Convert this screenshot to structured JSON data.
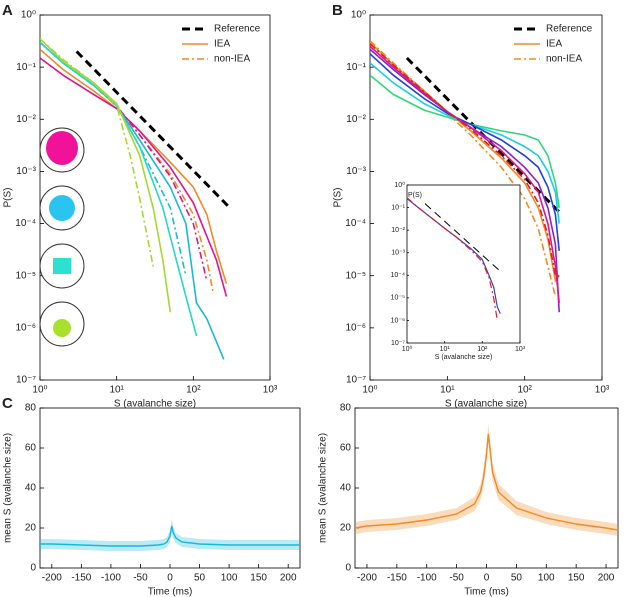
{
  "chart_data": [
    {
      "type": "line",
      "panel_label": "A",
      "xlabel": "S (avalanche size)",
      "ylabel": "P(S)",
      "xscale": "log",
      "yscale": "log",
      "xlim": [
        1,
        1000
      ],
      "ylim": [
        1e-07,
        1
      ],
      "xticks": [
        {
          "value": 1,
          "label": "10⁰"
        },
        {
          "value": 10,
          "label": "10¹"
        },
        {
          "value": 100,
          "label": "10²"
        },
        {
          "value": 1000,
          "label": "10³"
        }
      ],
      "yticks": [
        {
          "value": 1e-07,
          "label": "10⁻⁷"
        },
        {
          "value": 1e-06,
          "label": "10⁻⁶"
        },
        {
          "value": 1e-05,
          "label": "10⁻⁵"
        },
        {
          "value": 0.0001,
          "label": "10⁻⁴"
        },
        {
          "value": 0.001,
          "label": "10⁻³"
        },
        {
          "value": 0.01,
          "label": "10⁻²"
        },
        {
          "value": 0.1,
          "label": "10⁻¹"
        },
        {
          "value": 1,
          "label": "10⁰"
        }
      ],
      "legend": "upper right",
      "series": [
        {
          "name": "Reference",
          "color": "#000000",
          "linestyle": "dashed",
          "width": 3,
          "x": [
            3,
            300
          ],
          "values": [
            0.2,
            0.0002
          ]
        },
        {
          "name": "IEA",
          "color": "#f08a24",
          "linestyle": "solid",
          "width": 1.6,
          "x": [
            1,
            2,
            5,
            10,
            20,
            50,
            100,
            150,
            200,
            270
          ],
          "values": [
            0.22,
            0.09,
            0.035,
            0.016,
            0.006,
            0.0015,
            0.0005,
            0.00015,
            3e-05,
            7e-06
          ]
        },
        {
          "name": "non-IEA",
          "color": "#f08a24",
          "linestyle": "dashdot",
          "width": 1.6,
          "x": [
            1,
            2,
            5,
            10,
            20,
            50,
            100,
            150,
            180
          ],
          "values": [
            0.3,
            0.12,
            0.045,
            0.018,
            0.005,
            0.0009,
            0.00015,
            2e-05,
            5e-06
          ]
        },
        {
          "color": "#e0148c",
          "linestyle": "solid",
          "width": 1.6,
          "x": [
            1,
            2,
            5,
            10,
            20,
            50,
            100,
            200,
            270
          ],
          "values": [
            0.15,
            0.07,
            0.03,
            0.016,
            0.006,
            0.0012,
            0.00025,
            2e-05,
            4e-06
          ]
        },
        {
          "color": "#e0148c",
          "linestyle": "dashdot",
          "width": 1.6,
          "x": [
            1,
            2,
            5,
            10,
            20,
            50,
            100,
            150
          ],
          "values": [
            0.3,
            0.12,
            0.045,
            0.018,
            0.005,
            0.0008,
            0.0001,
            8e-06
          ]
        },
        {
          "color": "#1ab8d8",
          "linestyle": "solid",
          "width": 1.6,
          "x": [
            1,
            2,
            5,
            10,
            20,
            50,
            80,
            110,
            150,
            250
          ],
          "values": [
            0.3,
            0.12,
            0.045,
            0.018,
            0.004,
            0.0005,
            0.0001,
            3e-06,
            1.5e-06,
            2.5e-07
          ]
        },
        {
          "color": "#1ab8d8",
          "linestyle": "dashdot",
          "width": 1.6,
          "x": [
            1,
            2,
            5,
            10,
            20,
            50,
            80
          ],
          "values": [
            0.3,
            0.12,
            0.045,
            0.018,
            0.003,
            0.0002,
            1e-05
          ]
        },
        {
          "color": "#25d8c8",
          "linestyle": "solid",
          "width": 1.6,
          "x": [
            1,
            2,
            5,
            10,
            20,
            40,
            60,
            80,
            110
          ],
          "values": [
            0.3,
            0.12,
            0.045,
            0.018,
            0.003,
            0.0002,
            2e-05,
            4e-06,
            7e-07
          ]
        },
        {
          "color": "#a6d82e",
          "linestyle": "solid",
          "width": 1.6,
          "x": [
            1,
            2,
            5,
            10,
            20,
            30,
            40,
            50
          ],
          "values": [
            0.35,
            0.13,
            0.05,
            0.02,
            0.002,
            0.0002,
            2e-05,
            2e-06
          ]
        },
        {
          "color": "#a6d82e",
          "linestyle": "dashdot",
          "width": 1.6,
          "x": [
            1,
            2,
            5,
            10,
            15,
            20,
            30
          ],
          "values": [
            0.35,
            0.14,
            0.05,
            0.018,
            0.002,
            0.0003,
            1.5e-05
          ]
        }
      ]
    },
    {
      "type": "line",
      "panel_label": "B",
      "xlabel": "S (avalanche size)",
      "ylabel": "P(S)",
      "xscale": "log",
      "yscale": "log",
      "xlim": [
        1,
        1000
      ],
      "ylim": [
        1e-07,
        1
      ],
      "xticks": [
        {
          "value": 1,
          "label": "10⁰"
        },
        {
          "value": 10,
          "label": "10¹"
        },
        {
          "value": 100,
          "label": "10²"
        },
        {
          "value": 1000,
          "label": "10³"
        }
      ],
      "yticks": [
        {
          "value": 1e-07,
          "label": "10⁻⁷"
        },
        {
          "value": 1e-06,
          "label": "10⁻⁶"
        },
        {
          "value": 1e-05,
          "label": "10⁻⁵"
        },
        {
          "value": 0.0001,
          "label": "10⁻⁴"
        },
        {
          "value": 0.001,
          "label": "10⁻³"
        },
        {
          "value": 0.01,
          "label": "10⁻²"
        },
        {
          "value": 0.1,
          "label": "10⁻¹"
        },
        {
          "value": 1,
          "label": "10⁰"
        }
      ],
      "legend": "upper right",
      "series": [
        {
          "name": "Reference",
          "color": "#000000",
          "linestyle": "dashed",
          "width": 3,
          "x": [
            3,
            300
          ],
          "values": [
            0.15,
            0.00015
          ]
        },
        {
          "name": "IEA",
          "color": "#f08a24",
          "linestyle": "solid",
          "width": 1.6,
          "x": [
            1,
            2,
            5,
            10,
            20,
            50,
            100,
            150,
            200,
            250,
            280
          ],
          "values": [
            0.3,
            0.11,
            0.035,
            0.014,
            0.006,
            0.0018,
            0.0006,
            0.0002,
            5e-05,
            8e-06,
            1e-05
          ]
        },
        {
          "name": "non-IEA",
          "color": "#f08a24",
          "linestyle": "dashdot",
          "width": 1.6,
          "x": [
            1,
            2,
            5,
            10,
            20,
            50,
            100,
            150,
            200,
            250,
            280
          ],
          "values": [
            0.32,
            0.12,
            0.035,
            0.013,
            0.005,
            0.0012,
            0.0003,
            8e-05,
            1.5e-05,
            4e-06,
            null
          ]
        },
        {
          "color": "#2ed87a",
          "linestyle": "solid",
          "width": 1.6,
          "x": [
            1,
            2,
            5,
            10,
            20,
            50,
            100,
            150,
            200,
            250,
            280
          ],
          "values": [
            0.07,
            0.03,
            0.015,
            0.011,
            0.008,
            0.006,
            0.005,
            0.004,
            0.002,
            0.0006,
            0.0002
          ]
        },
        {
          "color": "#1ad0e0",
          "linestyle": "solid",
          "width": 1.6,
          "x": [
            1,
            2,
            5,
            10,
            20,
            50,
            100,
            150,
            200,
            250,
            280
          ],
          "values": [
            0.12,
            0.05,
            0.02,
            0.012,
            0.008,
            0.005,
            0.003,
            0.002,
            0.001,
            0.0004,
            0.0001
          ]
        },
        {
          "color": "#2040e0",
          "linestyle": "solid",
          "width": 1.6,
          "x": [
            1,
            2,
            5,
            10,
            20,
            50,
            100,
            150,
            200,
            250,
            280
          ],
          "values": [
            0.18,
            0.07,
            0.025,
            0.013,
            0.008,
            0.004,
            0.002,
            0.0012,
            0.0005,
            0.00015,
            3e-05
          ]
        },
        {
          "color": "#8a20d0",
          "linestyle": "solid",
          "width": 1.6,
          "x": [
            1,
            2,
            5,
            10,
            20,
            50,
            100,
            150,
            200,
            250,
            280
          ],
          "values": [
            0.22,
            0.09,
            0.03,
            0.014,
            0.007,
            0.003,
            0.0012,
            0.0006,
            0.0002,
            4e-05,
            2e-06
          ]
        },
        {
          "color": "#e0148c",
          "linestyle": "solid",
          "width": 1.6,
          "x": [
            1,
            2,
            5,
            10,
            20,
            50,
            100,
            150,
            200,
            250,
            280
          ],
          "values": [
            0.25,
            0.1,
            0.032,
            0.014,
            0.007,
            0.0025,
            0.0009,
            0.0004,
            0.0001,
            1.5e-05,
            3e-06
          ]
        },
        {
          "color": "#e02020",
          "linestyle": "dashdot",
          "width": 1.6,
          "x": [
            1,
            2,
            5,
            10,
            20,
            50,
            100,
            150,
            200,
            250,
            280
          ],
          "values": [
            0.28,
            0.11,
            0.034,
            0.014,
            0.0065,
            0.002,
            0.0007,
            0.00025,
            6e-05,
            1e-05,
            1e-05
          ]
        }
      ]
    },
    {
      "type": "line",
      "xlabel": "S (avalanche size)",
      "ylabel": "P(S)",
      "xscale": "log",
      "yscale": "log",
      "xlim": [
        1,
        1000
      ],
      "ylim": [
        1e-07,
        1
      ],
      "xticks": [
        {
          "value": 1,
          "label": "10⁰"
        },
        {
          "value": 10,
          "label": "10¹"
        },
        {
          "value": 100,
          "label": "10²"
        },
        {
          "value": 1000,
          "label": "10³"
        }
      ],
      "yticks": [
        {
          "value": 1e-07,
          "label": "10⁻⁷"
        },
        {
          "value": 1e-06,
          "label": "10⁻⁶"
        },
        {
          "value": 1e-05,
          "label": "10⁻⁵"
        },
        {
          "value": 0.0001,
          "label": "10⁻⁴"
        },
        {
          "value": 0.001,
          "label": "10⁻³"
        },
        {
          "value": 0.01,
          "label": "10⁻²"
        },
        {
          "value": 0.1,
          "label": "10⁻¹"
        },
        {
          "value": 1,
          "label": "10⁰"
        }
      ],
      "series": [
        {
          "color": "#000000",
          "linestyle": "dashed",
          "width": 1,
          "x": [
            3,
            300
          ],
          "values": [
            0.15,
            0.00015
          ]
        },
        {
          "color": "#4040c0",
          "linestyle": "solid",
          "width": 1.2,
          "x": [
            1,
            2,
            5,
            10,
            20,
            50,
            100,
            150,
            200,
            250,
            300
          ],
          "values": [
            0.25,
            0.1,
            0.03,
            0.012,
            0.005,
            0.0015,
            0.0005,
            0.0001,
            3e-05,
            4e-06,
            2e-06
          ]
        },
        {
          "color": "#e02020",
          "linestyle": "dashdot",
          "width": 1.2,
          "x": [
            1,
            2,
            5,
            10,
            20,
            50,
            100,
            150,
            200,
            250
          ],
          "values": [
            0.27,
            0.1,
            0.03,
            0.012,
            0.005,
            0.0013,
            0.0004,
            8e-05,
            1e-05,
            1e-06
          ]
        }
      ]
    },
    {
      "type": "line",
      "panel_label": "C",
      "xlabel": "Time (ms)",
      "ylabel": "mean S (avalanche size)",
      "xlim": [
        -220,
        220
      ],
      "ylim": [
        0,
        80
      ],
      "xticks": [
        -200,
        -150,
        -100,
        -50,
        0,
        50,
        100,
        150,
        200
      ],
      "yticks": [
        0,
        20,
        40,
        60,
        80
      ],
      "x": [
        -220,
        -200,
        -150,
        -100,
        -50,
        -20,
        -10,
        -5,
        0,
        3,
        5,
        10,
        20,
        50,
        100,
        150,
        200,
        220
      ],
      "series": [
        {
          "color": "#1ab8d8",
          "band": true,
          "width": 1.4,
          "values": [
            12,
            12,
            11.5,
            11,
            11,
            11.5,
            12,
            13,
            16,
            21,
            18,
            15,
            13,
            12,
            11.5,
            11.5,
            11.5,
            11.5
          ],
          "error": [
            2.5,
            2.5,
            2.5,
            2.5,
            2.5,
            2.5,
            2.5,
            2.5,
            3,
            3.5,
            3,
            2.5,
            2.5,
            2.5,
            2.5,
            2.5,
            2.5,
            2.5
          ]
        }
      ]
    },
    {
      "type": "line",
      "xlabel": "Time (ms)",
      "ylabel": "mean S (avalanche size)",
      "xlim": [
        -220,
        220
      ],
      "ylim": [
        0,
        80
      ],
      "xticks": [
        -200,
        -150,
        -100,
        -50,
        0,
        50,
        100,
        150,
        200
      ],
      "yticks": [
        0,
        20,
        40,
        60,
        80
      ],
      "x": [
        -220,
        -200,
        -150,
        -100,
        -50,
        -20,
        -10,
        -5,
        0,
        3,
        5,
        10,
        20,
        50,
        100,
        150,
        200,
        220
      ],
      "series": [
        {
          "color": "#f08a24",
          "band": true,
          "width": 1.4,
          "values": [
            20,
            21,
            22,
            24,
            27,
            32,
            38,
            45,
            57,
            67,
            62,
            48,
            38,
            30,
            25,
            22,
            20,
            19
          ],
          "error": [
            3,
            3,
            3,
            3,
            3,
            3.5,
            4,
            4.5,
            5,
            5,
            5,
            4.5,
            4,
            3.5,
            3,
            3,
            3,
            3
          ]
        }
      ]
    }
  ]
}
